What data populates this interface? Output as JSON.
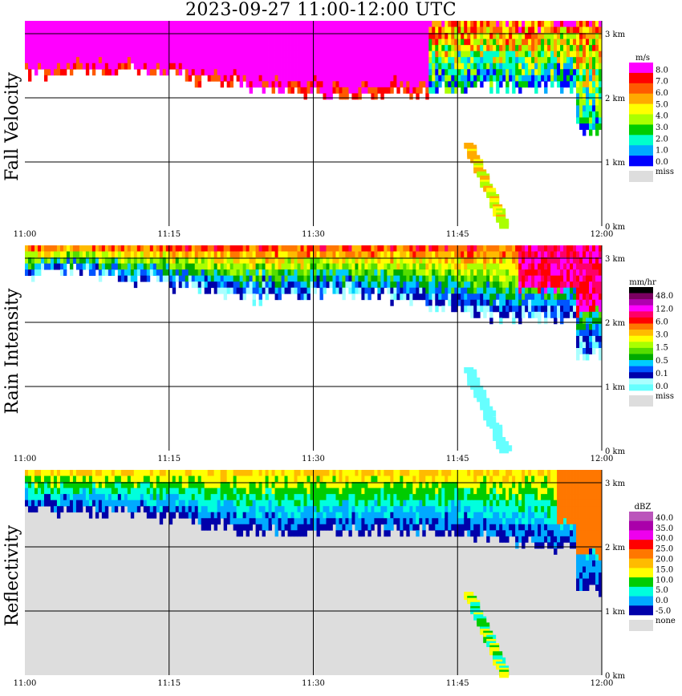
{
  "title": "2023-09-27  11:00-12:00 UTC",
  "x_ticks": [
    "11:00",
    "11:15",
    "11:30",
    "11:45",
    "12:00"
  ],
  "y_ticks": [
    "3 km",
    "2 km",
    "1 km",
    "0 km"
  ],
  "colors": {
    "missing_fill": "#dddddd",
    "grid": "#000000",
    "background": "#ffffff"
  },
  "chart_data": [
    {
      "type": "heatmap",
      "title": "",
      "ylabel": "Fall Velocity",
      "x_range": [
        "11:00",
        "12:00"
      ],
      "y_range_km": [
        0,
        3.2
      ],
      "y_ticks_km": [
        3,
        2,
        1,
        0
      ],
      "colorbar": {
        "unit": "m/s",
        "levels": [
          "8.0",
          "7.0",
          "6.0",
          "5.0",
          "4.0",
          "3.0",
          "2.0",
          "1.0",
          "0.0"
        ],
        "colors": [
          "#ff00ff",
          "#ff0000",
          "#ff5a00",
          "#ffaa00",
          "#ffff00",
          "#aaff00",
          "#00cc00",
          "#00ffcc",
          "#00aaff",
          "#0000ff"
        ],
        "missing_label": "miss"
      }
    },
    {
      "type": "heatmap",
      "title": "",
      "ylabel": "Rain Intensity",
      "x_range": [
        "11:00",
        "12:00"
      ],
      "y_range_km": [
        0,
        3.2
      ],
      "y_ticks_km": [
        3,
        2,
        1,
        0
      ],
      "colorbar": {
        "unit": "mm/hr",
        "levels": [
          "48.0",
          "12.0",
          "6.0",
          "3.0",
          "1.5",
          "0.5",
          "0.1",
          "0.0"
        ],
        "colors": [
          "#000000",
          "#7a0060",
          "#b000b0",
          "#ff00ff",
          "#ff0066",
          "#ff0000",
          "#ff7700",
          "#ffbb00",
          "#ffff00",
          "#aaff00",
          "#55dd00",
          "#00aa00",
          "#00ccff",
          "#0055ff",
          "#0000aa",
          "#aaffff",
          "#66ffff"
        ],
        "missing_label": "miss"
      }
    },
    {
      "type": "heatmap",
      "title": "",
      "ylabel": "Reflectivity",
      "x_range": [
        "11:00",
        "12:00"
      ],
      "y_range_km": [
        0,
        3.2
      ],
      "y_ticks_km": [
        3,
        2,
        1,
        0
      ],
      "colorbar": {
        "unit": "dBZ",
        "levels": [
          "40.0",
          "35.0",
          "30.0",
          "25.0",
          "20.0",
          "15.0",
          "10.0",
          "5.0",
          "0.0",
          "-5.0"
        ],
        "colors": [
          "#bb55bb",
          "#aa00aa",
          "#ee00ee",
          "#ff0000",
          "#ff7700",
          "#ffbb00",
          "#ffff00",
          "#00cc00",
          "#00ffdd",
          "#00aaff",
          "#0000aa"
        ],
        "missing_label": "none"
      }
    }
  ]
}
